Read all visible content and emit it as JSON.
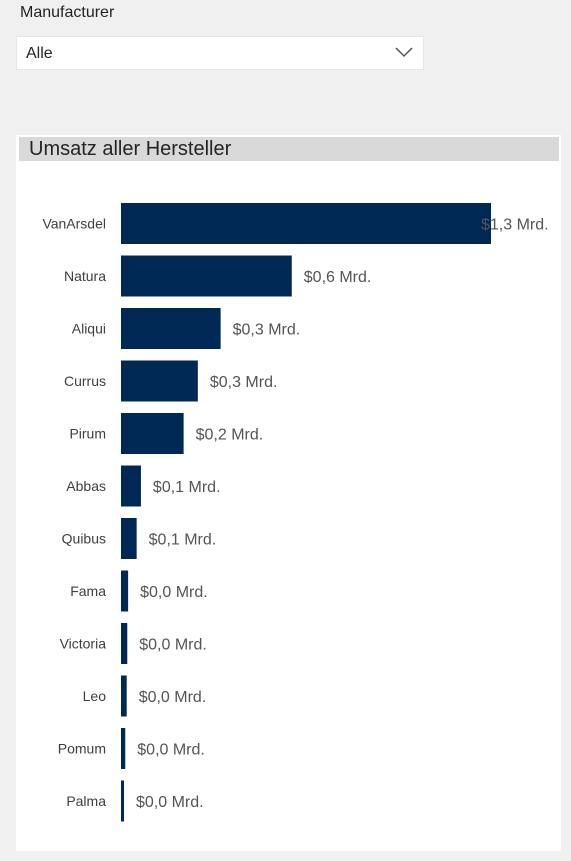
{
  "slicer": {
    "title": "Manufacturer",
    "selected_value": "Alle"
  },
  "visual": {
    "title": "Umsatz aller Hersteller"
  },
  "colors": {
    "bar": "#002855",
    "header_bg": "#d9d9d9"
  },
  "chart_data": {
    "type": "bar",
    "orientation": "horizontal",
    "title": "Umsatz aller Hersteller",
    "categories": [
      "VanArsdel",
      "Natura",
      "Aliqui",
      "Currus",
      "Pirum",
      "Abbas",
      "Quibus",
      "Fama",
      "Victoria",
      "Leo",
      "Pomum",
      "Palma"
    ],
    "values": [
      1.3,
      0.6,
      0.35,
      0.27,
      0.22,
      0.07,
      0.055,
      0.025,
      0.022,
      0.02,
      0.015,
      0.01
    ],
    "data_labels": [
      "$1,3 Mrd.",
      "$0,6 Mrd.",
      "$0,3 Mrd.",
      "$0,3 Mrd.",
      "$0,2 Mrd.",
      "$0,1 Mrd.",
      "$0,1 Mrd.",
      "$0,0 Mrd.",
      "$0,0 Mrd.",
      "$0,0 Mrd.",
      "$0,0 Mrd.",
      "$0,0 Mrd."
    ],
    "xlim": [
      0,
      1.3
    ],
    "grid": false,
    "legend": "none"
  }
}
